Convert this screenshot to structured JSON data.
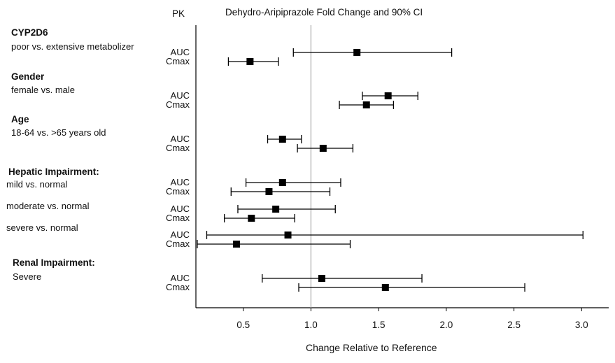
{
  "chart_data": {
    "type": "forest",
    "title": "Dehydro-Aripiprazole Fold Change and 90% CI",
    "column_header": "PK",
    "xlabel": "Change Relative to Reference",
    "xlim": [
      0.15,
      3.2
    ],
    "xticks": [
      "0.5",
      "1.0",
      "1.5",
      "2.0",
      "2.5",
      "3.0"
    ],
    "reference_line": 1.0,
    "groups": [
      {
        "title": "CYP2D6",
        "comparisons": [
          {
            "label": "poor vs. extensive metabolizer",
            "rows": [
              {
                "pk": "AUC",
                "estimate": 1.34,
                "lower": 0.87,
                "upper": 2.04
              },
              {
                "pk": "Cmax",
                "estimate": 0.55,
                "lower": 0.39,
                "upper": 0.76
              }
            ]
          }
        ]
      },
      {
        "title": "Gender",
        "comparisons": [
          {
            "label": "female vs. male",
            "rows": [
              {
                "pk": "AUC",
                "estimate": 1.57,
                "lower": 1.38,
                "upper": 1.79
              },
              {
                "pk": "Cmax",
                "estimate": 1.41,
                "lower": 1.21,
                "upper": 1.61
              }
            ]
          }
        ]
      },
      {
        "title": "Age",
        "comparisons": [
          {
            "label": "18-64 vs. >65 years old",
            "rows": [
              {
                "pk": "AUC",
                "estimate": 0.79,
                "lower": 0.68,
                "upper": 0.93
              },
              {
                "pk": "Cmax",
                "estimate": 1.09,
                "lower": 0.9,
                "upper": 1.31
              }
            ]
          }
        ]
      },
      {
        "title": "Hepatic Impairment:",
        "comparisons": [
          {
            "label": "mild vs. normal",
            "rows": [
              {
                "pk": "AUC",
                "estimate": 0.79,
                "lower": 0.52,
                "upper": 1.22
              },
              {
                "pk": "Cmax",
                "estimate": 0.69,
                "lower": 0.41,
                "upper": 1.14
              }
            ]
          },
          {
            "label": "moderate vs. normal",
            "rows": [
              {
                "pk": "AUC",
                "estimate": 0.74,
                "lower": 0.46,
                "upper": 1.18
              },
              {
                "pk": "Cmax",
                "estimate": 0.56,
                "lower": 0.36,
                "upper": 0.88
              }
            ]
          },
          {
            "label": "severe vs. normal",
            "rows": [
              {
                "pk": "AUC",
                "estimate": 0.83,
                "lower": 0.23,
                "upper": 3.01
              },
              {
                "pk": "Cmax",
                "estimate": 0.45,
                "lower": 0.16,
                "upper": 1.29
              }
            ]
          }
        ]
      },
      {
        "title": "Renal Impairment:",
        "comparisons": [
          {
            "label": "Severe",
            "rows": [
              {
                "pk": "AUC",
                "estimate": 1.08,
                "lower": 0.64,
                "upper": 1.82
              },
              {
                "pk": "Cmax",
                "estimate": 1.55,
                "lower": 0.91,
                "upper": 2.58
              }
            ]
          }
        ]
      }
    ]
  }
}
